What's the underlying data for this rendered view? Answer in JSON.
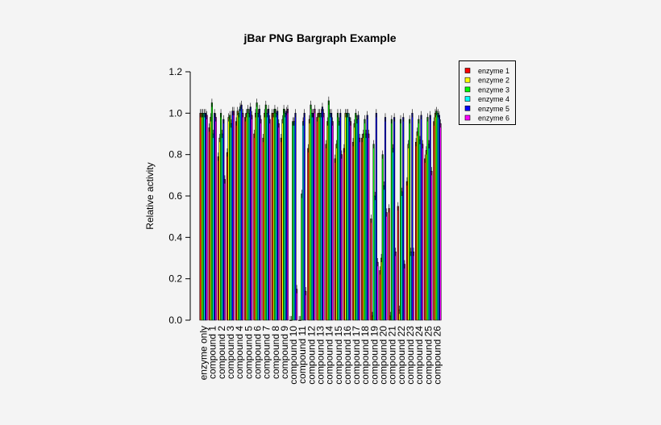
{
  "chart_data": {
    "type": "bar",
    "title": "jBar PNG Bargraph Example",
    "xlabel": "",
    "ylabel": "Relative activity",
    "ylim": [
      0,
      1.2
    ],
    "yticks": [
      "0.0",
      "0.2",
      "0.4",
      "0.6",
      "0.8",
      "1.0",
      "1.2"
    ],
    "grid": false,
    "legend_position": "top-right",
    "categories": [
      "enzyme only",
      "compound 1",
      "compound 2",
      "compound 3",
      "compound 4",
      "compound 5",
      "compound 6",
      "compound 7",
      "compound 8",
      "compound 9",
      "compound 10",
      "compound 11",
      "compound 12",
      "compound 13",
      "compound 14",
      "compound 15",
      "compound 16",
      "compound 17",
      "compound 18",
      "compound 19",
      "compound 20",
      "compound 21",
      "compound 22",
      "compound 23",
      "compound 24",
      "compound 25",
      "compound 26"
    ],
    "series": [
      {
        "name": "enzyme 1",
        "color": "#ff0000",
        "values": [
          1.0,
          0.93,
          0.79,
          0.81,
          0.96,
          0.98,
          0.9,
          0.88,
          1.0,
          0.88,
          0.0,
          0.0,
          0.83,
          0.98,
          0.85,
          0.78,
          0.83,
          0.86,
          0.88,
          0.49,
          0.24,
          0.54,
          0.55,
          0.67,
          0.86,
          0.78,
          0.96
        ]
      },
      {
        "name": "enzyme 2",
        "color": "#ffff00",
        "values": [
          1.0,
          0.98,
          0.88,
          0.98,
          1.01,
          1.0,
          1.0,
          1.0,
          1.0,
          0.97,
          0.0,
          0.0,
          0.97,
          1.0,
          0.96,
          0.85,
          1.0,
          0.95,
          0.9,
          0.02,
          0.3,
          0.02,
          0.05,
          0.85,
          0.91,
          0.82,
          1.0
        ]
      },
      {
        "name": "enzyme 3",
        "color": "#00ff00",
        "values": [
          1.0,
          1.05,
          1.0,
          0.99,
          1.0,
          1.02,
          1.05,
          1.04,
          1.02,
          1.02,
          0.96,
          0.61,
          1.04,
          1.0,
          1.06,
          1.0,
          1.0,
          1.0,
          0.97,
          0.85,
          0.8,
          0.97,
          0.97,
          0.97,
          0.97,
          0.98,
          1.01
        ]
      },
      {
        "name": "enzyme 4",
        "color": "#00ffff",
        "values": [
          1.0,
          0.9,
          0.9,
          0.95,
          1.03,
          1.0,
          1.0,
          1.0,
          1.0,
          1.0,
          0.96,
          0.96,
          1.0,
          1.0,
          1.0,
          0.96,
          1.0,
          0.97,
          0.9,
          0.6,
          0.65,
          0.83,
          0.62,
          0.33,
          0.87,
          0.85,
          1.0
        ]
      },
      {
        "name": "enzyme 5",
        "color": "#0000ff",
        "values": [
          1.0,
          1.0,
          0.97,
          1.01,
          1.04,
          1.03,
          1.02,
          1.02,
          1.01,
          1.01,
          1.0,
          1.0,
          1.0,
          1.03,
          1.0,
          1.0,
          0.98,
          0.99,
          0.99,
          1.0,
          0.98,
          0.98,
          0.98,
          1.0,
          0.99,
          0.99,
          0.99
        ]
      },
      {
        "name": "enzyme 6",
        "color": "#ff00ff",
        "values": [
          0.99,
          0.98,
          0.68,
          1.01,
          1.0,
          0.99,
          0.97,
          0.97,
          0.95,
          1.02,
          0.15,
          0.14,
          1.02,
          1.0,
          0.96,
          0.8,
          0.96,
          0.88,
          0.9,
          0.28,
          0.52,
          0.33,
          0.27,
          0.33,
          0.85,
          0.72,
          0.95
        ]
      }
    ]
  }
}
